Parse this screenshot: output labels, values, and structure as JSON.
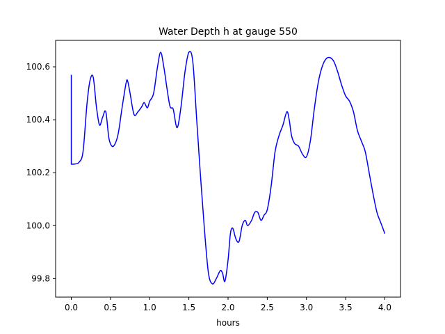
{
  "chart_data": {
    "type": "line",
    "title": "Water Depth h at gauge 550",
    "xlabel": "hours",
    "ylabel": "",
    "xlim": [
      -0.2,
      4.2
    ],
    "ylim": [
      99.73,
      100.7
    ],
    "xticks": [
      0.0,
      0.5,
      1.0,
      1.5,
      2.0,
      2.5,
      3.0,
      3.5,
      4.0
    ],
    "xtick_labels": [
      "0.0",
      "0.5",
      "1.0",
      "1.5",
      "2.0",
      "2.5",
      "3.0",
      "3.5",
      "4.0"
    ],
    "yticks": [
      99.8,
      100.0,
      100.2,
      100.4,
      100.6
    ],
    "ytick_labels": [
      "99.8",
      "100.0",
      "100.2",
      "100.4",
      "100.6"
    ],
    "grid": false,
    "series": [
      {
        "color": "#0000ff",
        "x": [
          0.0,
          0.0,
          0.05,
          0.1,
          0.15,
          0.2,
          0.24,
          0.28,
          0.32,
          0.36,
          0.4,
          0.44,
          0.48,
          0.52,
          0.56,
          0.6,
          0.65,
          0.7,
          0.72,
          0.75,
          0.8,
          0.85,
          0.9,
          0.93,
          0.97,
          1.0,
          1.05,
          1.1,
          1.14,
          1.18,
          1.22,
          1.26,
          1.3,
          1.35,
          1.4,
          1.45,
          1.5,
          1.55,
          1.6,
          1.65,
          1.7,
          1.75,
          1.8,
          1.85,
          1.9,
          1.93,
          1.96,
          2.0,
          2.03,
          2.06,
          2.1,
          2.14,
          2.18,
          2.22,
          2.25,
          2.3,
          2.34,
          2.38,
          2.42,
          2.46,
          2.5,
          2.55,
          2.6,
          2.65,
          2.7,
          2.75,
          2.78,
          2.81,
          2.85,
          2.9,
          2.95,
          3.0,
          3.05,
          3.1,
          3.15,
          3.2,
          3.25,
          3.3,
          3.35,
          3.4,
          3.45,
          3.5,
          3.55,
          3.6,
          3.65,
          3.7,
          3.75,
          3.8,
          3.85,
          3.9,
          3.95,
          4.0
        ],
        "y": [
          100.57,
          100.232,
          100.233,
          100.24,
          100.28,
          100.46,
          100.55,
          100.56,
          100.45,
          100.38,
          100.41,
          100.43,
          100.33,
          100.3,
          100.31,
          100.35,
          100.45,
          100.54,
          100.545,
          100.5,
          100.42,
          100.43,
          100.45,
          100.465,
          100.445,
          100.47,
          100.5,
          100.6,
          100.655,
          100.6,
          100.52,
          100.45,
          100.44,
          100.37,
          100.45,
          100.58,
          100.655,
          100.62,
          100.4,
          100.18,
          99.98,
          99.82,
          99.78,
          99.8,
          99.83,
          99.82,
          99.79,
          99.87,
          99.97,
          99.99,
          99.95,
          99.94,
          100.0,
          100.02,
          100.0,
          100.02,
          100.05,
          100.05,
          100.02,
          100.04,
          100.06,
          100.15,
          100.28,
          100.34,
          100.38,
          100.43,
          100.4,
          100.34,
          100.31,
          100.3,
          100.27,
          100.26,
          100.32,
          100.44,
          100.54,
          100.6,
          100.63,
          100.635,
          100.62,
          100.58,
          100.53,
          100.49,
          100.47,
          100.43,
          100.36,
          100.32,
          100.28,
          100.2,
          100.12,
          100.05,
          100.01,
          99.97
        ]
      }
    ]
  }
}
